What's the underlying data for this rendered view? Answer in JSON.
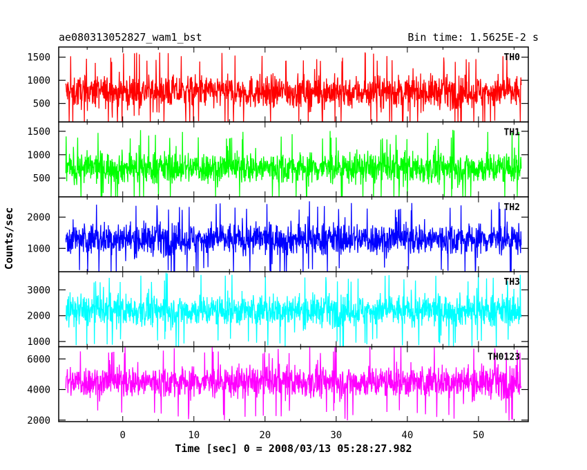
{
  "header": {
    "title": "ae080313052827_wam1_bst",
    "bin_time": "Bin time: 1.5625E-2 s"
  },
  "chart_data": {
    "type": "line",
    "xlabel": "Time [sec] 0 = 2008/03/13 05:28:27.982",
    "ylabel": "Counts/sec",
    "xlim": [
      -9,
      57
    ],
    "x_ticks": [
      "0",
      "10",
      "20",
      "30",
      "40",
      "50"
    ],
    "data_x_range": [
      -8,
      56
    ],
    "panels": [
      {
        "name": "TH0",
        "color": "#ff0000",
        "ylim": [
          100,
          1720
        ],
        "ticks": [
          "500",
          "1000",
          "1500"
        ],
        "mean": 750,
        "low": 150,
        "high": 1700,
        "peak": 1680
      },
      {
        "name": "TH1",
        "color": "#00ff00",
        "ylim": [
          100,
          1700
        ],
        "ticks": [
          "500",
          "1000",
          "1500"
        ],
        "mean": 720,
        "low": 150,
        "high": 1650,
        "peak": 1650
      },
      {
        "name": "TH2",
        "color": "#0000ff",
        "ylim": [
          250,
          2650
        ],
        "ticks": [
          "1000",
          "2000"
        ],
        "mean": 1300,
        "low": 350,
        "high": 2600,
        "peak": 2600
      },
      {
        "name": "TH3",
        "color": "#00ffff",
        "ylim": [
          800,
          3700
        ],
        "ticks": [
          "1000",
          "2000",
          "3000"
        ],
        "mean": 2200,
        "low": 900,
        "high": 3600,
        "peak": 3600
      },
      {
        "name": "TH0123",
        "color": "#ff00ff",
        "ylim": [
          1900,
          6800
        ],
        "ticks": [
          "2000",
          "4000",
          "6000"
        ],
        "mean": 4500,
        "low": 2100,
        "high": 6700,
        "peak": 6700
      }
    ]
  }
}
